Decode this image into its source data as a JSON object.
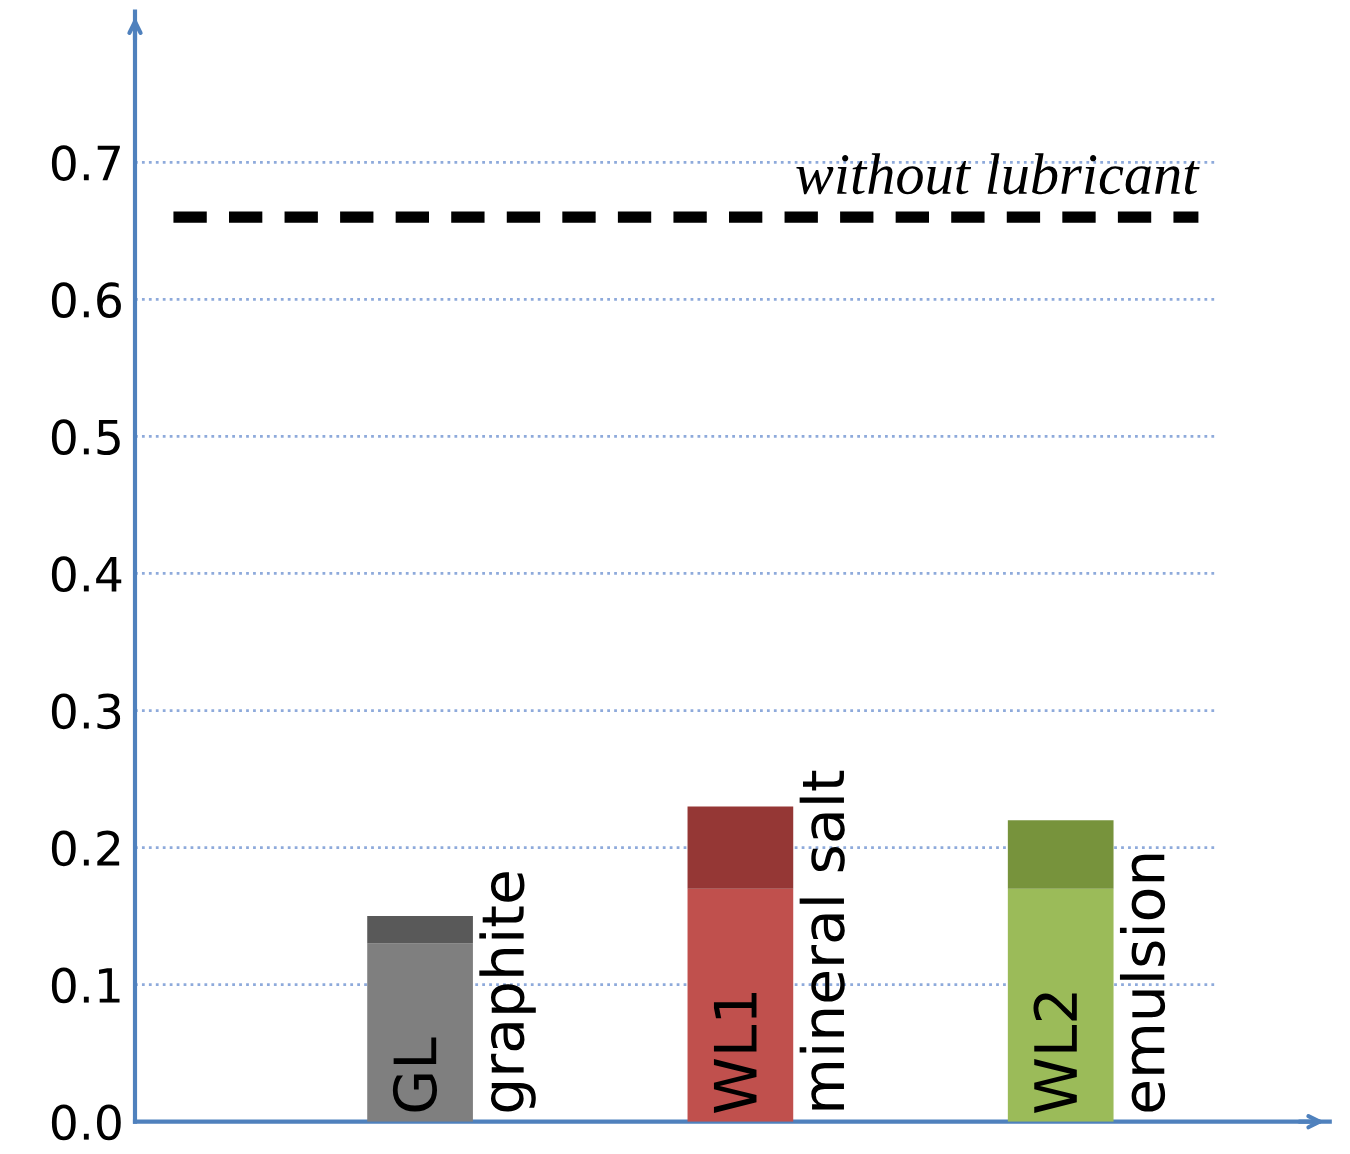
{
  "chart_data": {
    "type": "bar",
    "stacked": true,
    "categories": [
      "GL",
      "WL1",
      "WL2"
    ],
    "series": [
      {
        "colors": [
          "#7f7f7f",
          "#c0504d",
          "#9bbb59"
        ],
        "values": [
          0.13,
          0.17,
          0.17
        ]
      },
      {
        "colors": [
          "#595959",
          "#953735",
          "#77933c"
        ],
        "values": [
          0.02,
          0.06,
          0.05
        ]
      }
    ],
    "ylim": [
      0,
      0.81
    ],
    "yticks": [
      {
        "value": 0,
        "label": "0.0"
      },
      {
        "value": 0.1,
        "label": "0.1"
      },
      {
        "value": 0.2,
        "label": "0.2"
      },
      {
        "value": 0.3,
        "label": "0.3"
      },
      {
        "value": 0.4,
        "label": "0.4"
      },
      {
        "value": 0.5,
        "label": "0.5"
      },
      {
        "value": 0.6,
        "label": "0.6"
      },
      {
        "value": 0.7,
        "label": "0.7"
      }
    ],
    "grid": "y",
    "ref_lines": [
      {
        "axis": "y",
        "value": 0.66,
        "label": "without lubricant",
        "color": "#000000",
        "line_style": "dashed"
      }
    ],
    "annotations": [
      "graphite",
      "mineral salt",
      "emulsion"
    ]
  }
}
